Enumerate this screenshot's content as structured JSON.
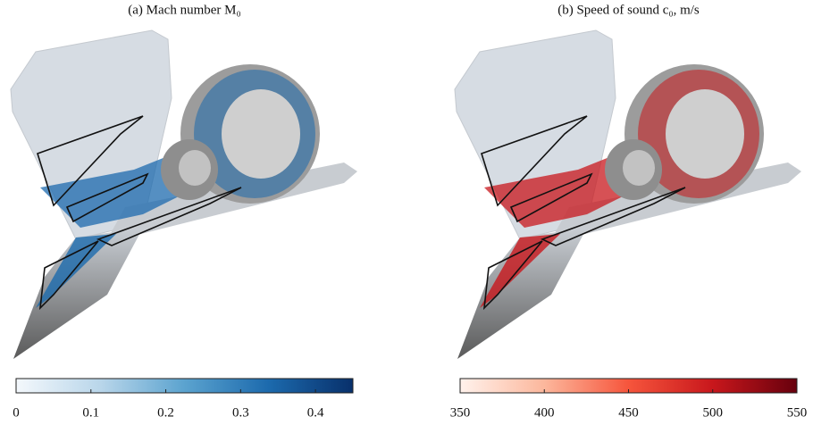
{
  "chart_data": [
    {
      "type": "colorbar",
      "title": "(a)  Mach number M₀",
      "xlim": [
        0,
        0.45
      ],
      "xticks": [
        0,
        0.1,
        0.2,
        0.3,
        0.4
      ],
      "colors": [
        "#f4f8fc",
        "#b9d6ea",
        "#5ba3cf",
        "#1c6aad",
        "#08306b"
      ]
    },
    {
      "type": "colorbar",
      "title": "(b)  Speed of sound c₀, m/s",
      "xlim": [
        350,
        550
      ],
      "xticks": [
        350,
        400,
        450,
        500,
        550
      ],
      "colors": [
        "#fff2ec",
        "#fcb79c",
        "#f6553c",
        "#c8171c",
        "#67000d"
      ]
    }
  ]
}
